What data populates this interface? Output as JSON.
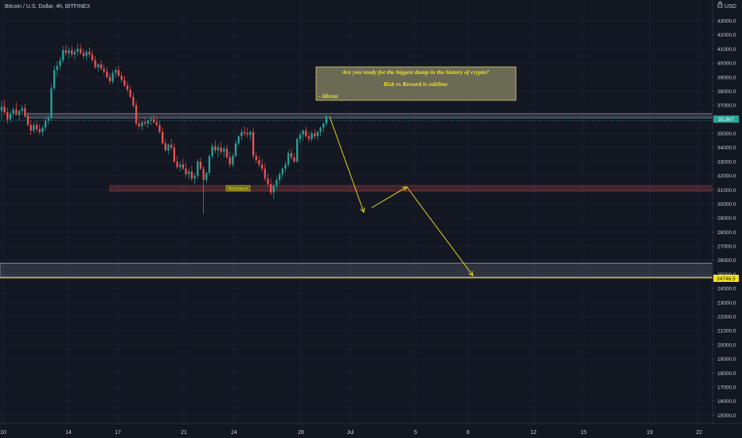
{
  "header": {
    "symbol_title": "Bitcoin / U.S. Dollar, 4h, BITFINEX"
  },
  "currency_selector": {
    "label": "USD",
    "icon": "lock-icon"
  },
  "colors": {
    "background": "#131722",
    "up_candle": "#26a69a",
    "down_candle": "#ef5350",
    "annotation_yellow": "#f5e21a",
    "resistance_zone": "#ef5350",
    "support_zone": "#9aa0ad",
    "current_price_tag": "#26a69a",
    "target_tag": "#f5e21a"
  },
  "annotation": {
    "line1": "Are you ready for the biggest dump in the history of crypto?",
    "line2": "Risk vs Reward is sublime",
    "line3": "- Alireza"
  },
  "resistance_label": "Resistance",
  "price_tags": {
    "current": "35,907",
    "target": "24746.5"
  },
  "chart_data": {
    "type": "candlestick",
    "title": "Bitcoin / U.S. Dollar, 4h, BITFINEX",
    "y_axis": {
      "unit": "USD",
      "min": 14500,
      "max": 43800,
      "tick_labels": [
        "43000.0",
        "42000.0",
        "41000.0",
        "40000.0",
        "39000.0",
        "38000.0",
        "37000.0",
        "36000.0",
        "35000.0",
        "34000.0",
        "33000.0",
        "32000.0",
        "31000.0",
        "30000.0",
        "29000.0",
        "28000.0",
        "27000.0",
        "26000.0",
        "25000.0",
        "24000.0",
        "23000.0",
        "22000.0",
        "21000.0",
        "20000.0",
        "19000.0",
        "18000.0",
        "17000.0",
        "16000.0",
        "15000.0"
      ]
    },
    "x_axis": {
      "tick_labels": [
        "10",
        "14",
        "17",
        "21",
        "24",
        "28",
        "Jul",
        "5",
        "8",
        "12",
        "15",
        "19",
        "22"
      ]
    },
    "candles": [
      [
        36600,
        37300,
        36000,
        36900
      ],
      [
        36900,
        37400,
        36300,
        36500
      ],
      [
        36500,
        36800,
        35700,
        36000
      ],
      [
        36000,
        36600,
        35800,
        36400
      ],
      [
        36400,
        36900,
        36100,
        36700
      ],
      [
        36700,
        37200,
        36400,
        36300
      ],
      [
        36300,
        36700,
        35900,
        36600
      ],
      [
        36600,
        37000,
        36300,
        36800
      ],
      [
        36800,
        37100,
        36100,
        36200
      ],
      [
        36200,
        36500,
        35500,
        35600
      ],
      [
        35600,
        35900,
        34900,
        35200
      ],
      [
        35200,
        35800,
        35000,
        35600
      ],
      [
        35600,
        35900,
        35100,
        35300
      ],
      [
        35300,
        35700,
        34900,
        35100
      ],
      [
        35100,
        35600,
        34800,
        35400
      ],
      [
        35400,
        36200,
        35200,
        35900
      ],
      [
        35900,
        36300,
        35600,
        36100
      ],
      [
        36100,
        38500,
        35900,
        38200
      ],
      [
        38200,
        39800,
        38000,
        39500
      ],
      [
        39500,
        40100,
        39100,
        39800
      ],
      [
        39800,
        40400,
        39500,
        40200
      ],
      [
        40200,
        41200,
        40000,
        40900
      ],
      [
        40900,
        41300,
        40500,
        40700
      ],
      [
        40700,
        41100,
        40300,
        40900
      ],
      [
        40900,
        41200,
        40400,
        40600
      ],
      [
        40600,
        41000,
        40200,
        40800
      ],
      [
        40800,
        41400,
        40500,
        41000
      ],
      [
        41000,
        41300,
        40600,
        40700
      ],
      [
        40700,
        41000,
        40300,
        40500
      ],
      [
        40500,
        40900,
        40200,
        40800
      ],
      [
        40800,
        41100,
        40400,
        40600
      ],
      [
        40600,
        40900,
        40100,
        40200
      ],
      [
        40200,
        40500,
        39600,
        39700
      ],
      [
        39700,
        40000,
        39400,
        39900
      ],
      [
        39900,
        40200,
        39500,
        39600
      ],
      [
        39600,
        39900,
        39200,
        39400
      ],
      [
        39400,
        39700,
        38900,
        39000
      ],
      [
        39000,
        39300,
        38500,
        38700
      ],
      [
        38700,
        39500,
        38500,
        39300
      ],
      [
        39300,
        39700,
        39000,
        39500
      ],
      [
        39500,
        39800,
        39000,
        39100
      ],
      [
        39100,
        39400,
        38600,
        38800
      ],
      [
        38800,
        39100,
        38300,
        38400
      ],
      [
        38400,
        38700,
        37900,
        38100
      ],
      [
        38100,
        38400,
        37500,
        37600
      ],
      [
        37600,
        37900,
        36800,
        37000
      ],
      [
        37000,
        37300,
        35500,
        35700
      ],
      [
        35700,
        36000,
        35300,
        35500
      ],
      [
        35500,
        35900,
        35200,
        35800
      ],
      [
        35800,
        36100,
        35500,
        35700
      ],
      [
        35700,
        36000,
        35400,
        35900
      ],
      [
        35900,
        36200,
        35600,
        36000
      ],
      [
        36000,
        36300,
        35700,
        35800
      ],
      [
        35800,
        36100,
        35500,
        35600
      ],
      [
        35600,
        35900,
        35000,
        35100
      ],
      [
        35100,
        35400,
        34200,
        34300
      ],
      [
        34300,
        34600,
        33700,
        33800
      ],
      [
        33800,
        34300,
        33500,
        34200
      ],
      [
        34200,
        34600,
        33800,
        34000
      ],
      [
        34000,
        34300,
        32900,
        33000
      ],
      [
        33000,
        33400,
        32500,
        32600
      ],
      [
        32600,
        33000,
        32300,
        32800
      ],
      [
        32800,
        33200,
        32400,
        32500
      ],
      [
        32500,
        32900,
        31900,
        32100
      ],
      [
        32100,
        32500,
        31700,
        32300
      ],
      [
        32300,
        32700,
        31600,
        31800
      ],
      [
        31800,
        32200,
        31400,
        32000
      ],
      [
        32000,
        33200,
        31800,
        33000
      ],
      [
        33000,
        33300,
        32400,
        32500
      ],
      [
        32500,
        32700,
        29300,
        31700
      ],
      [
        31700,
        32300,
        31500,
        32200
      ],
      [
        32200,
        33500,
        32000,
        33400
      ],
      [
        33400,
        34300,
        33200,
        34100
      ],
      [
        34100,
        34500,
        33600,
        33800
      ],
      [
        33800,
        34200,
        33300,
        34000
      ],
      [
        34000,
        34400,
        33500,
        33700
      ],
      [
        33700,
        34100,
        33300,
        33900
      ],
      [
        33900,
        34200,
        33200,
        33300
      ],
      [
        33300,
        33700,
        32600,
        32800
      ],
      [
        32800,
        33600,
        32600,
        33400
      ],
      [
        33400,
        34500,
        33300,
        34300
      ],
      [
        34300,
        34900,
        34100,
        34800
      ],
      [
        34800,
        35300,
        34500,
        35100
      ],
      [
        35100,
        35500,
        34800,
        35000
      ],
      [
        35000,
        35400,
        34700,
        34900
      ],
      [
        34900,
        35200,
        34500,
        35100
      ],
      [
        35100,
        35400,
        33200,
        33400
      ],
      [
        33400,
        33700,
        32900,
        33100
      ],
      [
        33100,
        33400,
        32600,
        32800
      ],
      [
        32800,
        33200,
        32300,
        32500
      ],
      [
        32500,
        32900,
        31600,
        31800
      ],
      [
        31800,
        32200,
        31200,
        31400
      ],
      [
        31400,
        31800,
        30600,
        30800
      ],
      [
        30800,
        31500,
        30300,
        31300
      ],
      [
        31300,
        31900,
        31000,
        31700
      ],
      [
        31700,
        32300,
        31400,
        32100
      ],
      [
        32100,
        32600,
        31800,
        32500
      ],
      [
        32500,
        33000,
        32200,
        32800
      ],
      [
        32800,
        33800,
        32600,
        33600
      ],
      [
        33600,
        33900,
        33100,
        33300
      ],
      [
        33300,
        33600,
        32900,
        33000
      ],
      [
        33000,
        34700,
        32900,
        34600
      ],
      [
        34600,
        35100,
        34300,
        34900
      ],
      [
        34900,
        35300,
        34500,
        35200
      ],
      [
        35200,
        35500,
        34700,
        34800
      ],
      [
        34800,
        35100,
        34400,
        34600
      ],
      [
        34600,
        35200,
        34400,
        35000
      ],
      [
        35000,
        35300,
        34600,
        34800
      ],
      [
        34800,
        35200,
        34500,
        35100
      ],
      [
        35100,
        35500,
        34800,
        35400
      ],
      [
        35400,
        35800,
        35100,
        35700
      ],
      [
        35700,
        36300,
        35500,
        36200
      ]
    ],
    "zones": [
      {
        "name": "Resistance",
        "low": 30900,
        "high": 31300
      },
      {
        "low": 36100,
        "high": 36400
      },
      {
        "low": 24800,
        "high": 25800
      }
    ],
    "projection_path": [
      36200,
      29400,
      31200,
      24900
    ],
    "current_price": 35907,
    "target_price": 24746.5
  }
}
